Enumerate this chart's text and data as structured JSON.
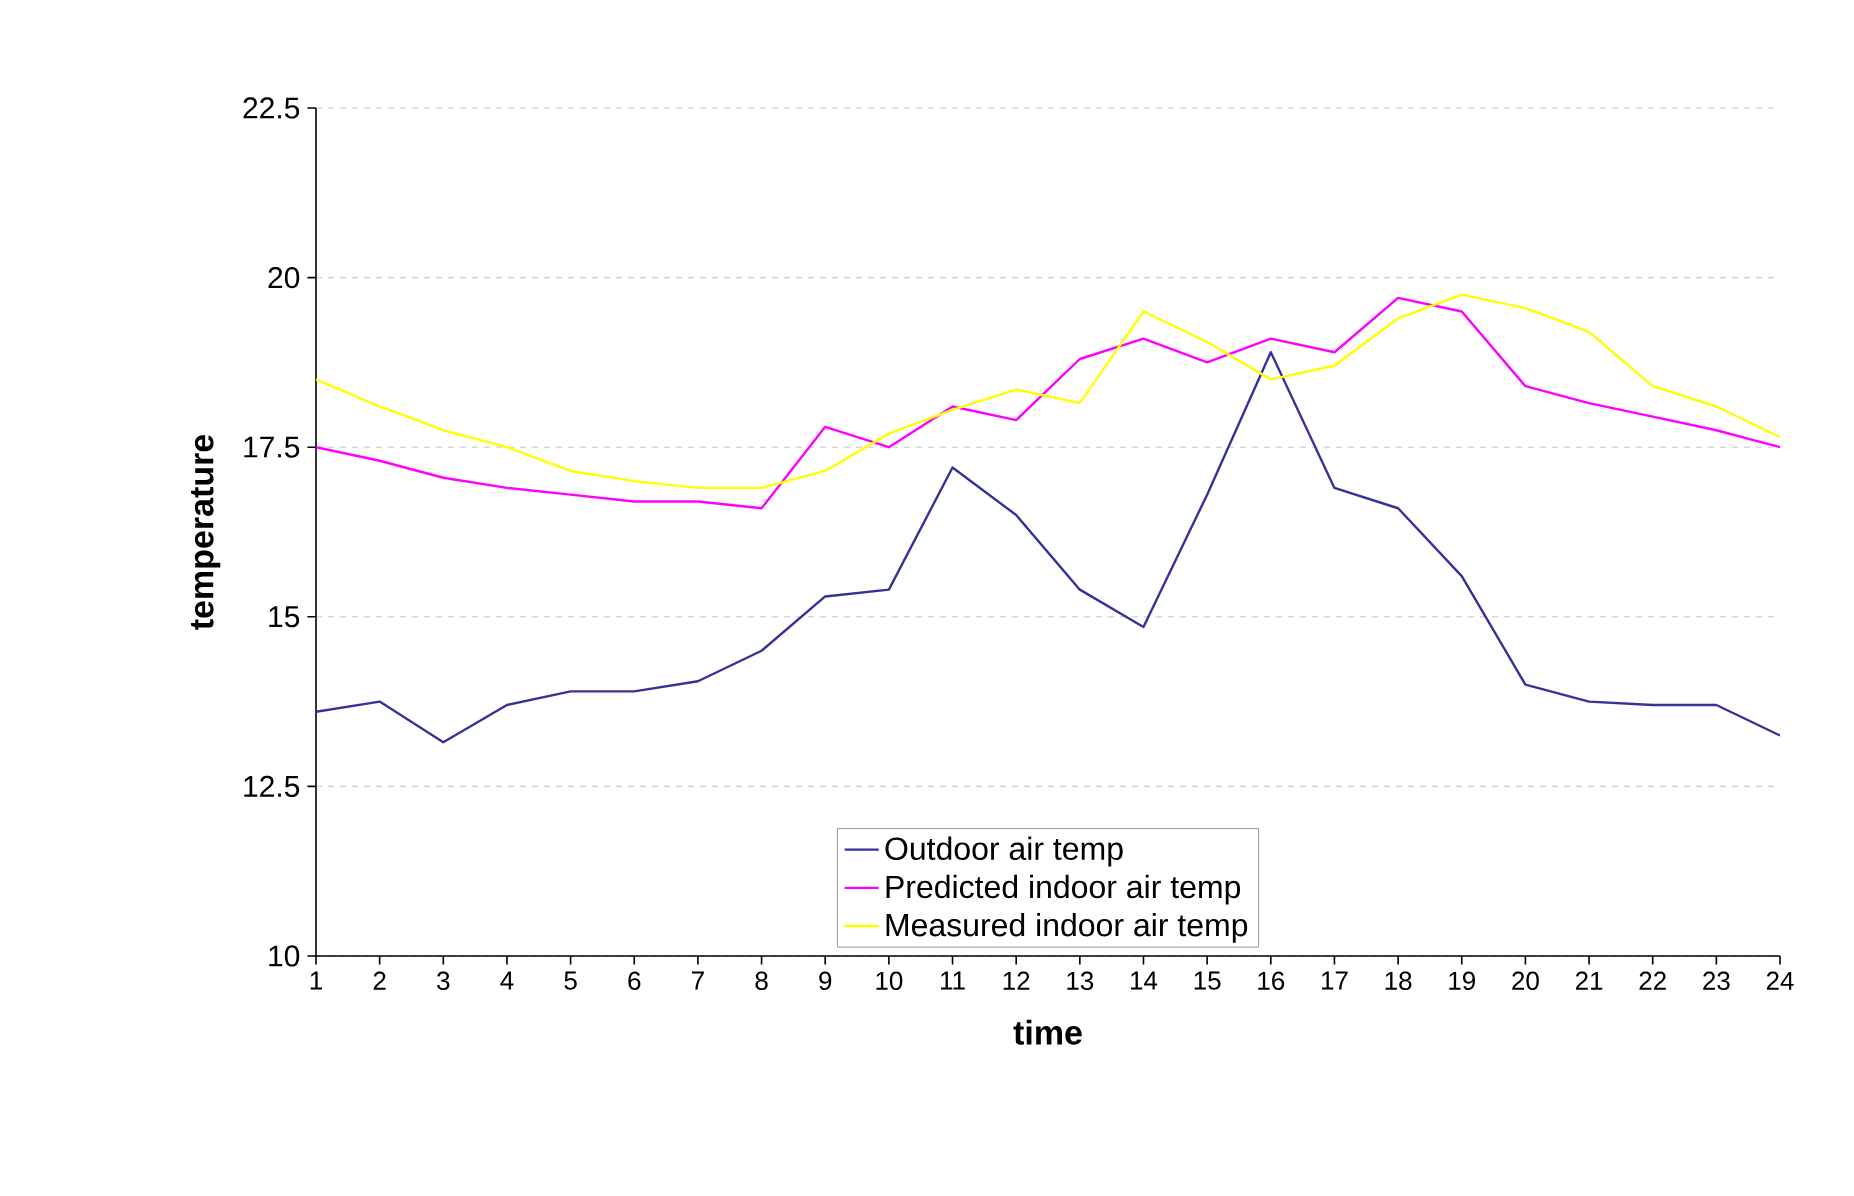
{
  "chart_data": {
    "type": "line",
    "xlabel": "time",
    "ylabel": "temperature",
    "categories": [
      "1",
      "2",
      "3",
      "4",
      "5",
      "6",
      "7",
      "8",
      "9",
      "10",
      "11",
      "12",
      "13",
      "14",
      "15",
      "16",
      "17",
      "18",
      "19",
      "20",
      "21",
      "22",
      "23",
      "24"
    ],
    "series": [
      {
        "name": "Outdoor air temp",
        "color": "#333399",
        "values": [
          13.6,
          13.75,
          13.15,
          13.7,
          13.9,
          13.9,
          14.05,
          14.5,
          15.3,
          15.4,
          17.2,
          16.5,
          15.4,
          14.85,
          16.8,
          18.9,
          16.9,
          16.6,
          15.6,
          14.0,
          13.75,
          13.7,
          13.7,
          13.25
        ]
      },
      {
        "name": "Predicted indoor air temp",
        "color": "#ff00ff",
        "values": [
          17.5,
          17.3,
          17.05,
          16.9,
          16.8,
          16.7,
          16.7,
          16.6,
          17.8,
          17.5,
          18.1,
          17.9,
          18.8,
          19.1,
          18.75,
          19.1,
          18.9,
          19.7,
          19.5,
          18.4,
          18.15,
          17.95,
          17.75,
          17.5
        ]
      },
      {
        "name": "Measured indoor air temp",
        "color": "#ffff00",
        "values": [
          18.5,
          18.1,
          17.75,
          17.5,
          17.15,
          17.0,
          16.9,
          16.9,
          17.15,
          17.7,
          18.05,
          18.35,
          18.15,
          19.5,
          19.05,
          18.5,
          18.7,
          19.4,
          19.75,
          19.55,
          19.2,
          18.4,
          18.1,
          17.65
        ]
      }
    ],
    "ylim": [
      10,
      22.5
    ],
    "yticks": [
      10,
      12.5,
      15,
      17.5,
      20,
      22.5
    ],
    "grid": "y",
    "legend": "bottom",
    "marker": "none",
    "line_style": "solid"
  }
}
